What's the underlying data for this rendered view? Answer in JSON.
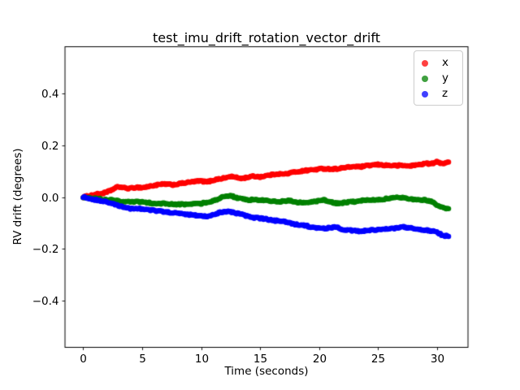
{
  "figure": {
    "background": "#ffffff"
  },
  "chart_data": {
    "type": "scatter",
    "title": "test_imu_drift_rotation_vector_drift",
    "xlabel": "Time (seconds)",
    "ylabel": "RV drift (degrees)",
    "xlim": [
      -1.55,
      32.65
    ],
    "ylim": [
      -0.58,
      0.58
    ],
    "xticks": [
      0,
      5,
      10,
      15,
      20,
      25,
      30
    ],
    "xtick_labels": [
      "0",
      "5",
      "10",
      "15",
      "20",
      "25",
      "30"
    ],
    "yticks": [
      -0.4,
      -0.2,
      0.0,
      0.2,
      0.4
    ],
    "ytick_labels": [
      "−0.4",
      "−0.2",
      "0.0",
      "0.2",
      "0.4"
    ],
    "grid": false,
    "axes_color": "#000000",
    "marker": "dot",
    "marker_size_px": 6.4,
    "legend": {
      "position": "upper right",
      "marker_alpha": 0.75,
      "entries": [
        {
          "label": "x",
          "color": "#ff0000"
        },
        {
          "label": "y",
          "color": "#008000"
        },
        {
          "label": "z",
          "color": "#0000ff"
        }
      ]
    },
    "t": [
      0,
      0.5,
      1,
      1.5,
      2,
      2.5,
      3,
      3.5,
      4,
      4.5,
      5,
      5.5,
      6,
      6.5,
      7,
      7.5,
      8,
      8.5,
      9,
      9.5,
      10,
      10.5,
      11,
      11.5,
      12,
      12.5,
      13,
      13.5,
      14,
      14.5,
      15,
      15.5,
      16,
      16.5,
      17,
      17.5,
      18,
      18.5,
      19,
      19.5,
      20,
      20.5,
      21,
      21.5,
      22,
      22.5,
      23,
      23.5,
      24,
      24.5,
      25,
      25.5,
      26,
      26.5,
      27,
      27.5,
      28,
      28.5,
      29,
      29.5,
      30,
      30.5,
      31
    ],
    "series": [
      {
        "name": "x",
        "color": "#ff0000",
        "values": [
          0.0,
          0.005,
          0.01,
          0.013,
          0.018,
          0.03,
          0.04,
          0.035,
          0.033,
          0.038,
          0.036,
          0.04,
          0.045,
          0.048,
          0.05,
          0.047,
          0.05,
          0.054,
          0.057,
          0.06,
          0.062,
          0.058,
          0.065,
          0.07,
          0.073,
          0.08,
          0.075,
          0.072,
          0.077,
          0.08,
          0.078,
          0.082,
          0.086,
          0.09,
          0.088,
          0.092,
          0.097,
          0.1,
          0.103,
          0.105,
          0.108,
          0.11,
          0.108,
          0.109,
          0.112,
          0.115,
          0.118,
          0.116,
          0.12,
          0.123,
          0.125,
          0.123,
          0.122,
          0.121,
          0.122,
          0.12,
          0.122,
          0.125,
          0.13,
          0.128,
          0.135,
          0.13,
          0.135
        ]
      },
      {
        "name": "y",
        "color": "#008000",
        "values": [
          0.0,
          -0.003,
          -0.005,
          -0.008,
          -0.01,
          -0.012,
          -0.015,
          -0.017,
          -0.02,
          -0.018,
          -0.02,
          -0.022,
          -0.025,
          -0.024,
          -0.026,
          -0.028,
          -0.029,
          -0.028,
          -0.027,
          -0.026,
          -0.025,
          -0.02,
          -0.015,
          -0.006,
          0.002,
          0.005,
          -0.002,
          -0.008,
          -0.012,
          -0.01,
          -0.012,
          -0.014,
          -0.016,
          -0.018,
          -0.016,
          -0.014,
          -0.02,
          -0.022,
          -0.02,
          -0.018,
          -0.015,
          -0.012,
          -0.02,
          -0.025,
          -0.022,
          -0.02,
          -0.018,
          -0.015,
          -0.012,
          -0.01,
          -0.01,
          -0.008,
          -0.005,
          -0.003,
          -0.002,
          -0.005,
          -0.008,
          -0.01,
          -0.012,
          -0.015,
          -0.03,
          -0.042,
          -0.045
        ]
      },
      {
        "name": "z",
        "color": "#0000ff",
        "values": [
          0.0,
          -0.005,
          -0.01,
          -0.015,
          -0.02,
          -0.025,
          -0.035,
          -0.04,
          -0.045,
          -0.043,
          -0.046,
          -0.05,
          -0.052,
          -0.055,
          -0.058,
          -0.06,
          -0.063,
          -0.065,
          -0.068,
          -0.07,
          -0.072,
          -0.074,
          -0.07,
          -0.06,
          -0.055,
          -0.058,
          -0.062,
          -0.068,
          -0.075,
          -0.08,
          -0.082,
          -0.085,
          -0.09,
          -0.092,
          -0.095,
          -0.1,
          -0.105,
          -0.108,
          -0.112,
          -0.118,
          -0.12,
          -0.122,
          -0.118,
          -0.115,
          -0.125,
          -0.128,
          -0.13,
          -0.132,
          -0.13,
          -0.128,
          -0.125,
          -0.125,
          -0.122,
          -0.12,
          -0.115,
          -0.118,
          -0.122,
          -0.125,
          -0.128,
          -0.13,
          -0.135,
          -0.148,
          -0.152
        ]
      }
    ]
  }
}
